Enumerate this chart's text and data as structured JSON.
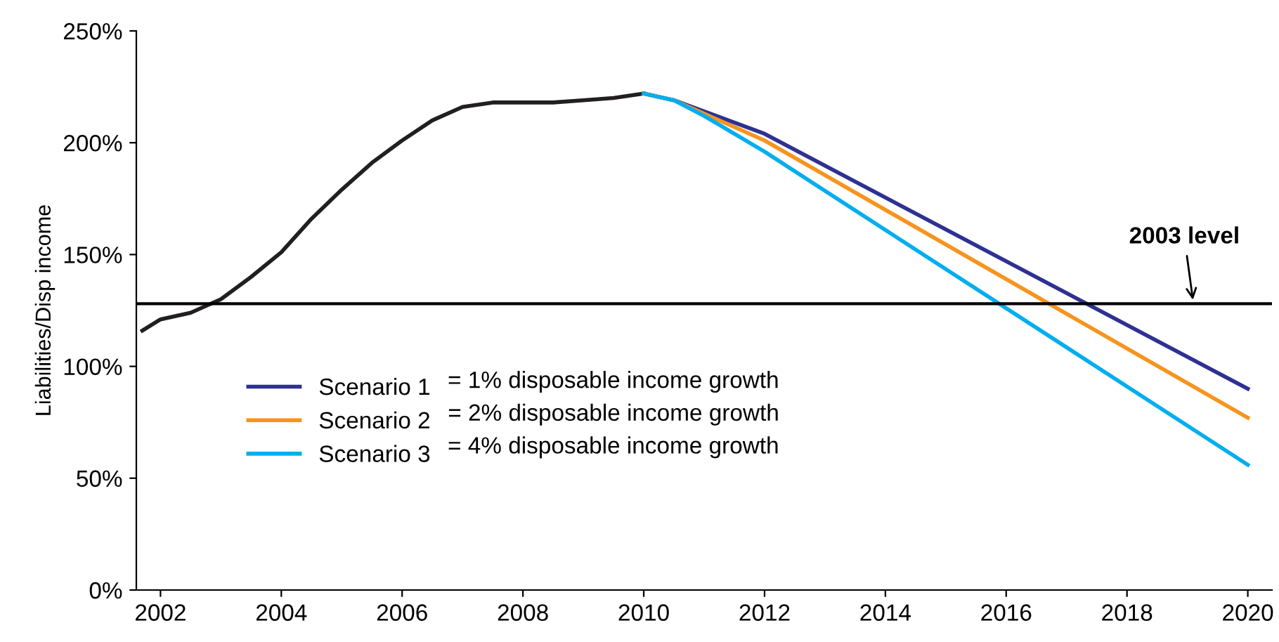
{
  "chart_data": {
    "type": "line",
    "ylabel": "Liabilities/Disp income",
    "xlim": [
      2001.6,
      2020.4
    ],
    "xticks": [
      2002,
      2004,
      2006,
      2008,
      2010,
      2012,
      2014,
      2016,
      2018,
      2020
    ],
    "ylim": [
      0,
      250
    ],
    "yticks": [
      {
        "value": 0,
        "label": "0%"
      },
      {
        "value": 50,
        "label": "50%"
      },
      {
        "value": 100,
        "label": "100%"
      },
      {
        "value": 150,
        "label": "150%"
      },
      {
        "value": 200,
        "label": "200%"
      },
      {
        "value": 250,
        "label": "250%"
      }
    ],
    "series": [
      {
        "color": "#231f20",
        "x": [
          2001.7,
          2002,
          2002.5,
          2003,
          2003.5,
          2004,
          2004.5,
          2005,
          2005.5,
          2006,
          2006.5,
          2007,
          2007.5,
          2008,
          2008.5,
          2009,
          2009.5,
          2010
        ],
        "values": [
          116,
          121,
          124,
          130,
          140,
          151,
          166,
          179,
          191,
          201,
          210,
          216,
          218,
          218,
          218,
          219,
          220,
          222
        ]
      },
      {
        "name": "Scenario 1",
        "color": "#2e3192",
        "x": [
          2010,
          2010.5,
          2011,
          2012,
          2020
        ],
        "values": [
          222,
          219,
          214,
          204,
          90
        ]
      },
      {
        "name": "Scenario 2",
        "color": "#f7941d",
        "x": [
          2010,
          2010.5,
          2011,
          2012,
          2020
        ],
        "values": [
          222,
          219,
          213,
          201,
          77
        ]
      },
      {
        "name": "Scenario 3",
        "color": "#00aeef",
        "x": [
          2010,
          2010.5,
          2011,
          2012,
          2020
        ],
        "values": [
          222,
          219,
          212,
          196,
          56
        ]
      }
    ],
    "ref_lines": [
      {
        "axis": "y",
        "value": 128,
        "color": "#000000"
      }
    ],
    "annotations": [
      {
        "text": "2003 level",
        "x": 2019.1,
        "y": 128
      },
      "= 1% disposable income growth",
      "= 2% disposable income growth",
      "= 4% disposable income growth"
    ],
    "legend": "center left",
    "grid": false
  }
}
